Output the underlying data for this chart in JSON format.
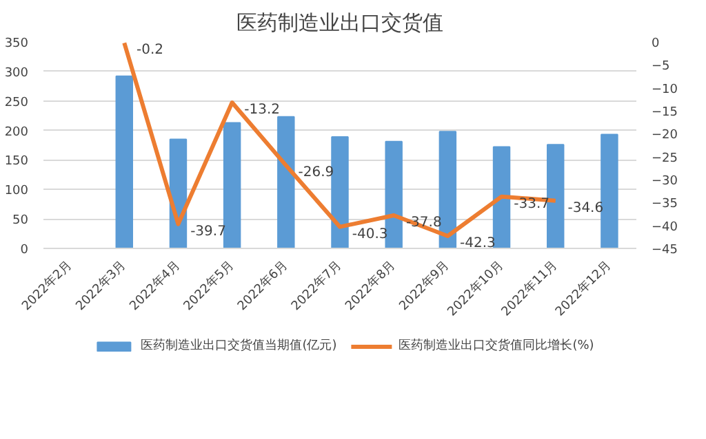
{
  "chart_data": {
    "type": "bar",
    "title": "医药制造业出口交货值",
    "categories": [
      "2022年2月",
      "2022年3月",
      "2022年4月",
      "2022年5月",
      "2022年6月",
      "2022年7月",
      "2022年8月",
      "2022年9月",
      "2022年10月",
      "2022年11月",
      "2022年12月"
    ],
    "series": [
      {
        "name": "医药制造业出口交货值当期值(亿元)",
        "color": "#5b9bd5",
        "values": [
          null,
          292,
          185,
          213,
          223,
          189,
          181,
          198,
          172,
          176,
          193
        ]
      },
      {
        "name": "医药制造业出口交货值同比增长(%)",
        "color": "#ed7d31",
        "type": "line",
        "axis": "y2",
        "values": [
          null,
          -0.2,
          -39.7,
          -13.2,
          -26.9,
          -40.3,
          -37.8,
          -42.3,
          -33.7,
          -34.6,
          null
        ],
        "value_labels": [
          null,
          "-0.2",
          "-39.7",
          "-13.2",
          "-26.9",
          "-40.3",
          "-37.8",
          "-42.3",
          "-33.7",
          "-34.6",
          null
        ]
      }
    ],
    "ylim": [
      0,
      350
    ],
    "yticks": [
      0,
      50,
      100,
      150,
      200,
      250,
      300,
      350
    ],
    "y2lim": [
      -45,
      0
    ],
    "y2ticks": [
      -45,
      -40,
      -35,
      -30,
      -25,
      -20,
      -15,
      -10,
      -5,
      0
    ],
    "grid": "y",
    "legend": "bottom",
    "marker": "none",
    "line_style": "solid"
  }
}
